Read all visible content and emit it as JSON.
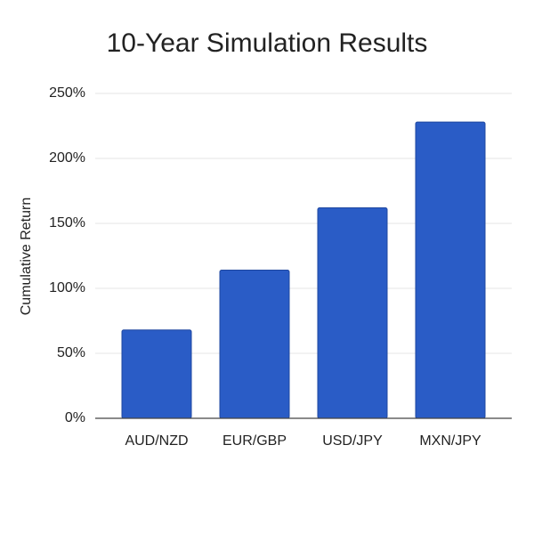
{
  "chart_data": {
    "type": "bar",
    "title": "10-Year Simulation Results",
    "y_label": "Cumulative Return",
    "categories": [
      "AUD/NZD",
      "EUR/GBP",
      "USD/JPY",
      "MXN/JPY"
    ],
    "values": [
      68,
      114,
      162,
      228
    ],
    "color": "#2a5cc6",
    "ylim": [
      0,
      250
    ],
    "yticks": [
      {
        "value": 0,
        "label": "0%"
      },
      {
        "value": 50,
        "label": "50%"
      },
      {
        "value": 100,
        "label": "100%"
      },
      {
        "value": 150,
        "label": "150%"
      },
      {
        "value": 200,
        "label": "200%"
      },
      {
        "value": 250,
        "label": "250%"
      }
    ],
    "grid": true
  }
}
